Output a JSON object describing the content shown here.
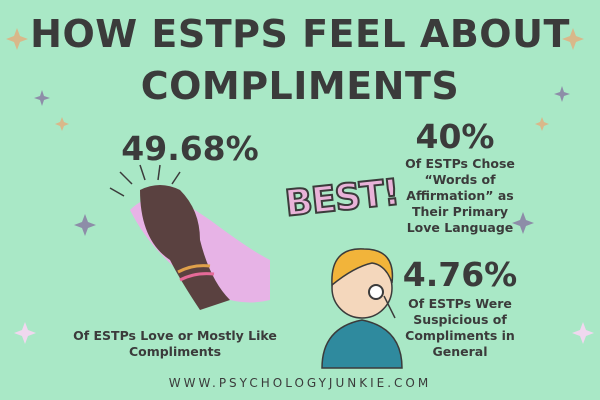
{
  "header": {
    "title": "HOW ESTPS FEEL ABOUT COMPLIMENTS"
  },
  "stats": [
    {
      "value": "49.68%",
      "caption": "Of ESTPs Love or Mostly Like Compliments"
    },
    {
      "value": "40%",
      "caption": "Of ESTPs Chose “Words of Affirmation” as Their Primary Love Language"
    },
    {
      "value": "4.76%",
      "caption": "Of ESTPs Were Suspicious of Compliments in General"
    }
  ],
  "sticker": "BEST!",
  "footer": "WWW.PSYCHOLOGYJUNKIE.COM"
}
